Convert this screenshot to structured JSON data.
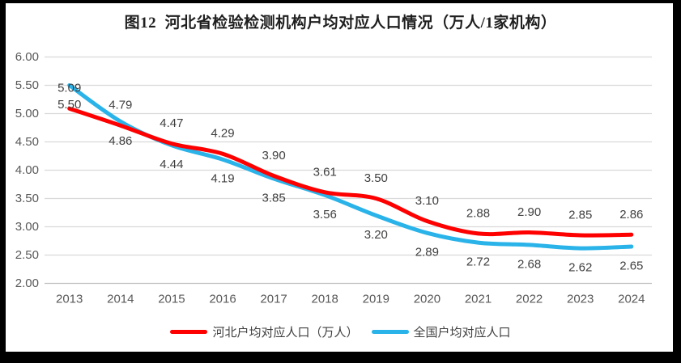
{
  "title": "图12  河北省检验检测机构户均对应人口情况（万人/1家机构）",
  "chart_data": {
    "type": "line",
    "title": "图12  河北省检验检测机构户均对应人口情况（万人/1家机构）",
    "categories": [
      "2013",
      "2014",
      "2015",
      "2016",
      "2017",
      "2018",
      "2019",
      "2020",
      "2021",
      "2022",
      "2023",
      "2024"
    ],
    "series": [
      {
        "name": "河北户均对应人口（万人）",
        "color": "#FE0000",
        "label_position": "above",
        "values": [
          5.09,
          4.79,
          4.47,
          4.29,
          3.9,
          3.61,
          3.5,
          3.1,
          2.88,
          2.9,
          2.85,
          2.86
        ]
      },
      {
        "name": "全国户均对应人口",
        "color": "#29B3E9",
        "label_position": "below",
        "values": [
          5.5,
          4.86,
          4.44,
          4.19,
          3.85,
          3.56,
          3.2,
          2.89,
          2.72,
          2.68,
          2.62,
          2.65
        ]
      }
    ],
    "ylim": [
      2.0,
      6.0
    ],
    "ytick_step": 0.5,
    "yticks": [
      "6.00",
      "5.50",
      "5.00",
      "4.50",
      "4.00",
      "3.50",
      "3.00",
      "2.50",
      "2.00"
    ],
    "grid": "horizontal",
    "value_labels": true,
    "legend_position": "bottom",
    "colors": {
      "gridline": "#D9D9D9",
      "axis_line": "#BFBFBF",
      "tick_label": "#595959",
      "data_label": "#404040"
    }
  }
}
